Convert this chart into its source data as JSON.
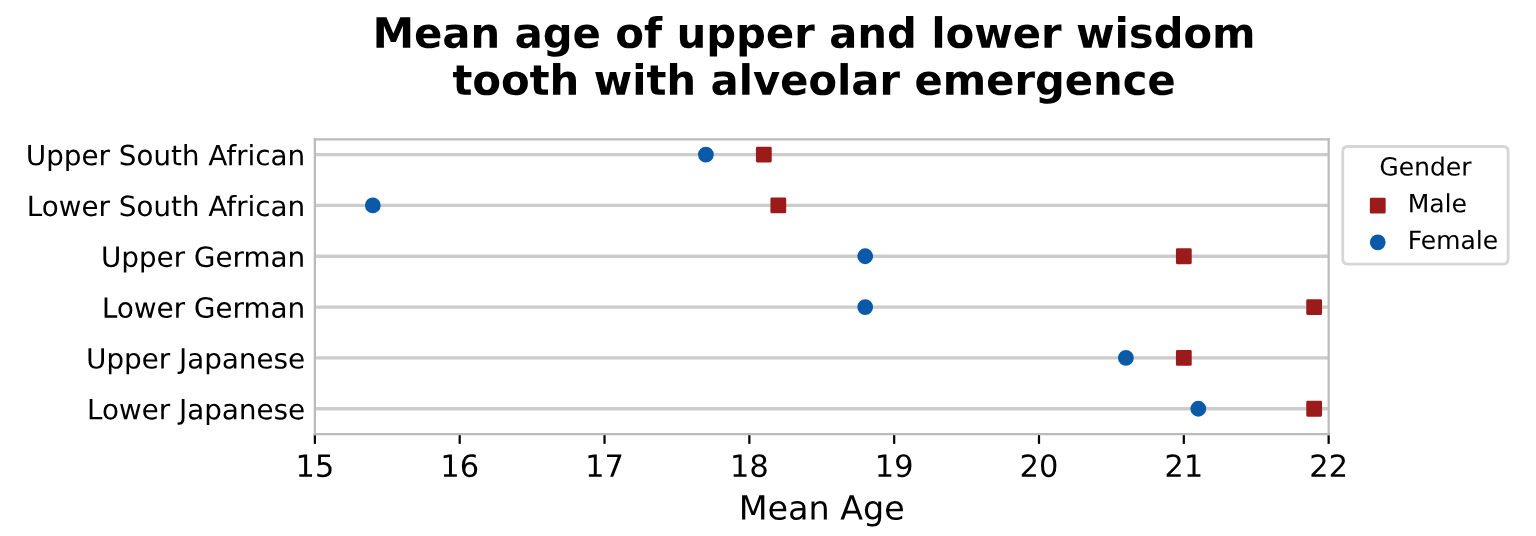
{
  "chart_data": {
    "type": "scatter",
    "orientation": "horizontal",
    "title": "Mean age of upper and lower wisdom\ntooth with alveolar emergence",
    "xlabel": "Mean Age",
    "categories": [
      "Upper South African",
      "Lower South African",
      "Upper German",
      "Lower German",
      "Upper Japanese",
      "Lower Japanese"
    ],
    "series": [
      {
        "name": "Male",
        "color": "#9b1b1b",
        "marker": "square",
        "values": [
          18.1,
          18.2,
          21.0,
          21.9,
          21.0,
          21.9
        ]
      },
      {
        "name": "Female",
        "color": "#0a5aa8",
        "marker": "circle",
        "values": [
          17.7,
          15.4,
          18.8,
          18.8,
          20.6,
          21.1
        ]
      }
    ],
    "legend_title": "Gender",
    "legend": "top right",
    "grid": "y",
    "xlim": [
      15,
      22
    ],
    "xticks": [
      15,
      16,
      17,
      18,
      19,
      20,
      21,
      22
    ]
  }
}
